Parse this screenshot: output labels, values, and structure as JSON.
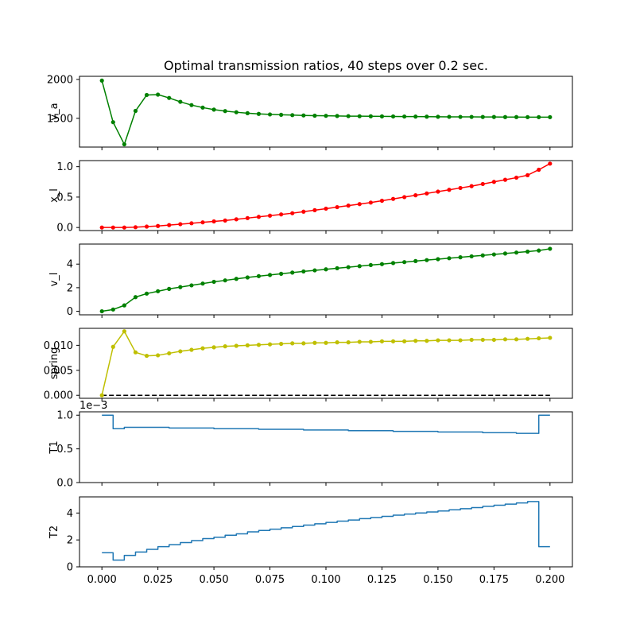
{
  "chart_data": {
    "type": "line",
    "title": "Optimal transmission ratios, 40 steps over 0.2 sec.",
    "xlim": [
      -0.01,
      0.21
    ],
    "xticks": [
      0.0,
      0.025,
      0.05,
      0.075,
      0.1,
      0.125,
      0.15,
      0.175,
      0.2
    ],
    "xtick_labels": [
      "0.000",
      "0.025",
      "0.050",
      "0.075",
      "0.100",
      "0.125",
      "0.150",
      "0.175",
      "0.200"
    ],
    "time": [
      0.0,
      0.005,
      0.01,
      0.015,
      0.02,
      0.025,
      0.03,
      0.035,
      0.04,
      0.045,
      0.05,
      0.055,
      0.06,
      0.065,
      0.07,
      0.075,
      0.08,
      0.085,
      0.09,
      0.095,
      0.1,
      0.105,
      0.11,
      0.115,
      0.12,
      0.125,
      0.13,
      0.135,
      0.14,
      0.145,
      0.15,
      0.155,
      0.16,
      0.165,
      0.17,
      0.175,
      0.18,
      0.185,
      0.19,
      0.195,
      0.2
    ],
    "subplots": [
      {
        "ylabel": "v_a",
        "kind": "line-markers",
        "color": "#008000",
        "ylim": [
          1130,
          2040
        ],
        "yticks": [
          1500,
          2000
        ],
        "ytick_labels": [
          "1500",
          "2000"
        ],
        "values": [
          1985,
          1450,
          1165,
          1595,
          1800,
          1805,
          1762,
          1712,
          1670,
          1638,
          1612,
          1593,
          1578,
          1566,
          1557,
          1550,
          1545,
          1541,
          1537,
          1534,
          1532,
          1530,
          1528,
          1527,
          1526,
          1525,
          1524,
          1523,
          1522,
          1521,
          1520,
          1519,
          1518,
          1518,
          1517,
          1517,
          1516,
          1516,
          1515,
          1515,
          1515
        ]
      },
      {
        "ylabel": "x_l",
        "kind": "line-markers",
        "color": "#ff0000",
        "ylim": [
          -0.05,
          1.1
        ],
        "yticks": [
          0.0,
          0.5,
          1.0
        ],
        "ytick_labels": [
          "0.0",
          "0.5",
          "1.0"
        ],
        "values": [
          0.0,
          0.0,
          0.0,
          0.005,
          0.015,
          0.025,
          0.04,
          0.055,
          0.07,
          0.085,
          0.1,
          0.115,
          0.135,
          0.155,
          0.175,
          0.195,
          0.215,
          0.235,
          0.26,
          0.285,
          0.31,
          0.335,
          0.36,
          0.385,
          0.41,
          0.44,
          0.47,
          0.5,
          0.53,
          0.56,
          0.59,
          0.62,
          0.65,
          0.68,
          0.715,
          0.75,
          0.785,
          0.82,
          0.86,
          0.95,
          1.05
        ]
      },
      {
        "ylabel": "v_l",
        "kind": "line-markers",
        "color": "#008000",
        "ylim": [
          -0.3,
          5.7
        ],
        "yticks": [
          0,
          2,
          4
        ],
        "ytick_labels": [
          "0",
          "2",
          "4"
        ],
        "values": [
          0.0,
          0.15,
          0.5,
          1.2,
          1.5,
          1.7,
          1.9,
          2.05,
          2.2,
          2.35,
          2.5,
          2.62,
          2.75,
          2.87,
          2.98,
          3.08,
          3.18,
          3.28,
          3.38,
          3.47,
          3.56,
          3.65,
          3.74,
          3.83,
          3.92,
          4.0,
          4.09,
          4.17,
          4.26,
          4.34,
          4.42,
          4.5,
          4.58,
          4.66,
          4.74,
          4.82,
          4.9,
          4.98,
          5.06,
          5.15,
          5.3
        ]
      },
      {
        "ylabel": "spring",
        "kind": "line-markers",
        "color": "#bfbf00",
        "ylim": [
          -0.0006,
          0.0134
        ],
        "yticks": [
          0.0,
          0.005,
          0.01
        ],
        "ytick_labels": [
          "0.000",
          "0.005",
          "0.010"
        ],
        "values": [
          0.0,
          0.0097,
          0.0128,
          0.0086,
          0.0079,
          0.008,
          0.0084,
          0.0088,
          0.0091,
          0.0094,
          0.0096,
          0.0098,
          0.0099,
          0.01,
          0.0101,
          0.0102,
          0.0103,
          0.0104,
          0.0104,
          0.0105,
          0.0105,
          0.0106,
          0.0106,
          0.0107,
          0.0107,
          0.0108,
          0.0108,
          0.0108,
          0.0109,
          0.0109,
          0.011,
          0.011,
          0.011,
          0.0111,
          0.0111,
          0.0111,
          0.0112,
          0.0112,
          0.0113,
          0.0114,
          0.0115
        ],
        "reference_line": {
          "value": 0.0,
          "color": "#000000",
          "style": "dashed"
        }
      },
      {
        "ylabel": "T1",
        "kind": "step",
        "color": "#1f77b4",
        "ylim": [
          0.0,
          1.05
        ],
        "yticks": [
          0.0,
          0.5,
          1.0
        ],
        "ytick_labels": [
          "0.0",
          "0.5",
          "1.0"
        ],
        "offset_text": "1e−3",
        "values": [
          1.0,
          0.8,
          0.82,
          0.82,
          0.82,
          0.82,
          0.81,
          0.81,
          0.81,
          0.81,
          0.8,
          0.8,
          0.8,
          0.8,
          0.79,
          0.79,
          0.79,
          0.79,
          0.78,
          0.78,
          0.78,
          0.78,
          0.77,
          0.77,
          0.77,
          0.77,
          0.76,
          0.76,
          0.76,
          0.76,
          0.75,
          0.75,
          0.75,
          0.75,
          0.74,
          0.74,
          0.74,
          0.73,
          0.73,
          1.0,
          1.0
        ]
      },
      {
        "ylabel": "T2",
        "kind": "step",
        "color": "#1f77b4",
        "ylim": [
          0.0,
          5.2
        ],
        "yticks": [
          0,
          2,
          4
        ],
        "ytick_labels": [
          "0",
          "2",
          "4"
        ],
        "values": [
          1.05,
          0.5,
          0.85,
          1.1,
          1.3,
          1.5,
          1.65,
          1.8,
          1.95,
          2.1,
          2.2,
          2.35,
          2.45,
          2.6,
          2.7,
          2.8,
          2.9,
          3.0,
          3.1,
          3.2,
          3.3,
          3.4,
          3.48,
          3.58,
          3.66,
          3.75,
          3.84,
          3.92,
          4.0,
          4.08,
          4.15,
          4.24,
          4.32,
          4.4,
          4.5,
          4.58,
          4.66,
          4.75,
          4.85,
          1.5,
          1.5
        ]
      }
    ]
  }
}
